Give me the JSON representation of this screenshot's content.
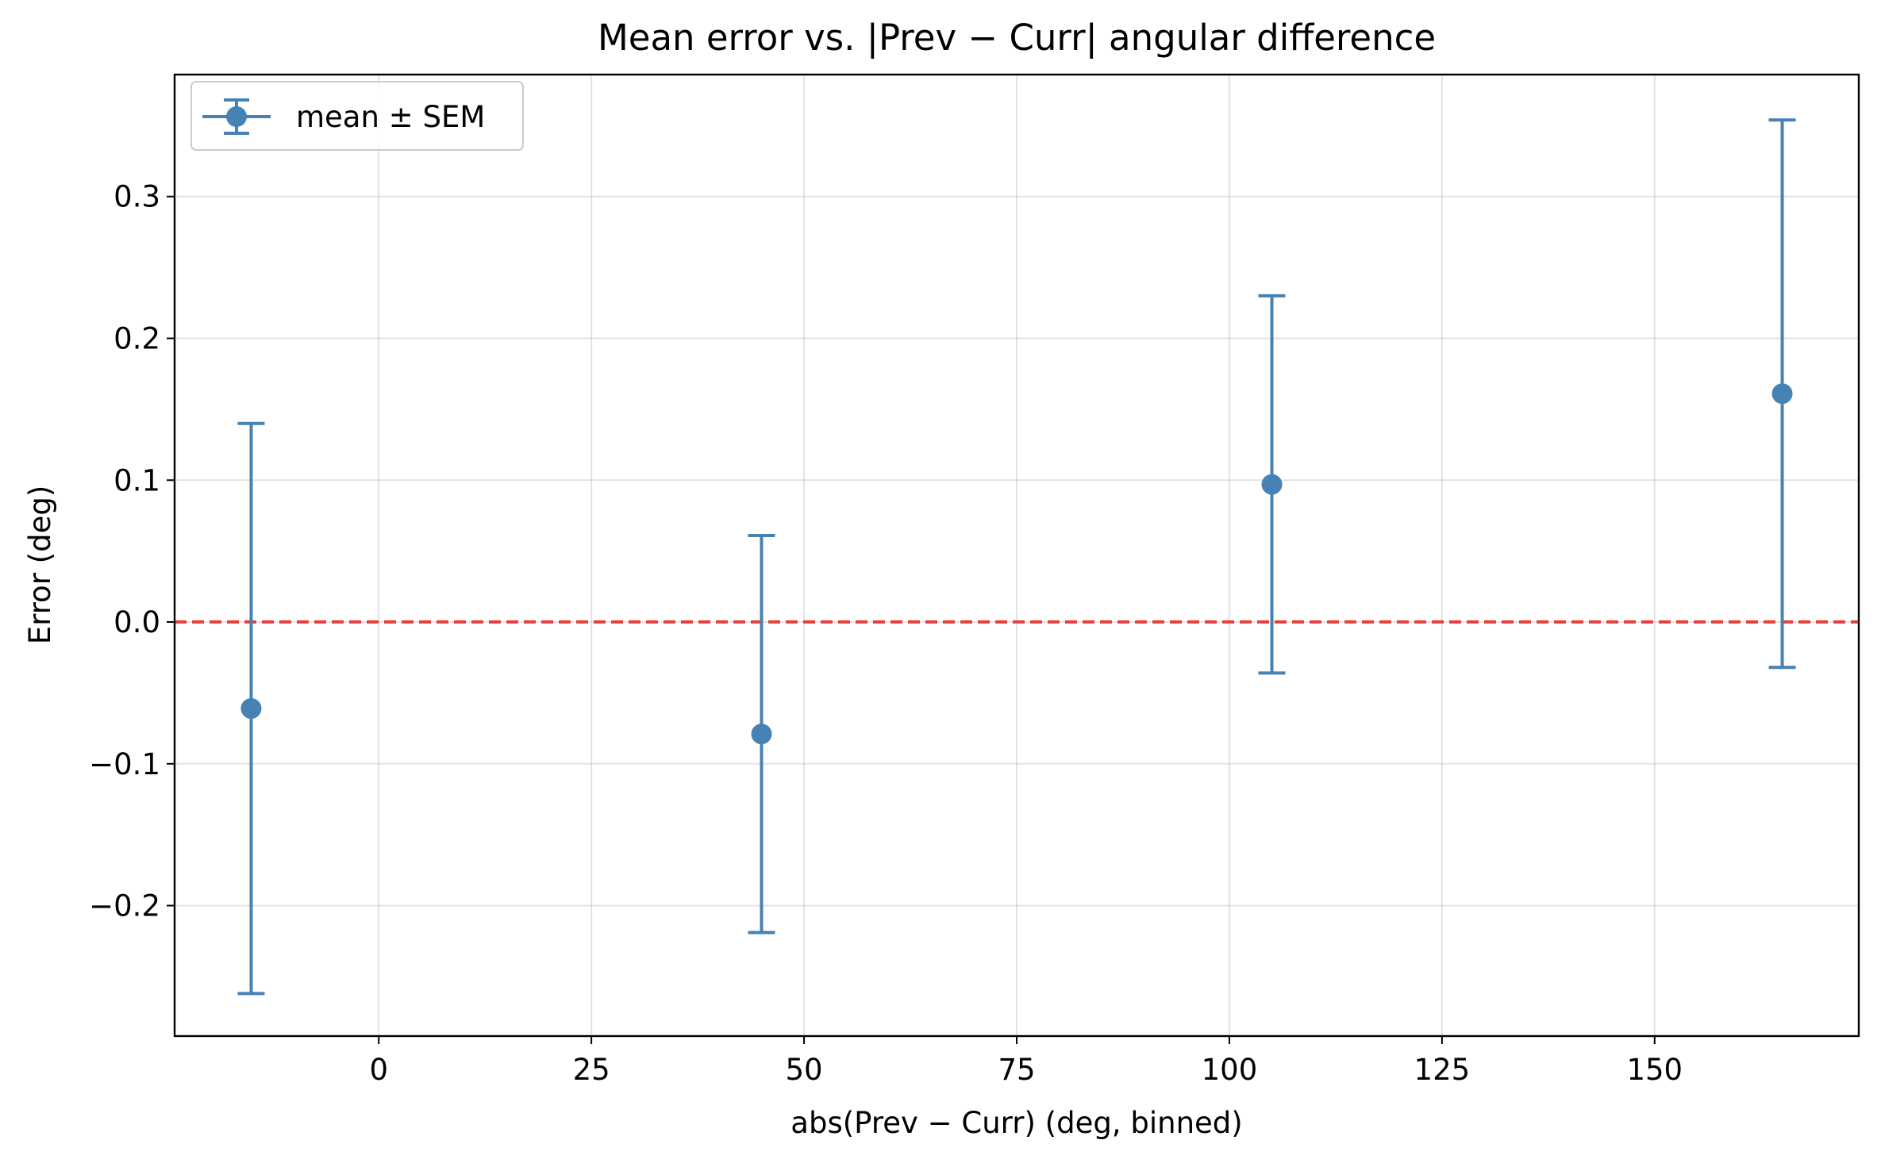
{
  "chart_data": {
    "type": "scatter",
    "title": "Mean error vs. |Prev − Curr| angular difference",
    "xlabel": "abs(Prev − Curr) (deg, binned)",
    "ylabel": "Error (deg)",
    "xlim": [
      -24,
      174
    ],
    "ylim": [
      -0.292,
      0.386
    ],
    "xticks": [
      0,
      25,
      50,
      75,
      100,
      125,
      150
    ],
    "xtick_labels": [
      "0",
      "25",
      "50",
      "75",
      "100",
      "125",
      "150"
    ],
    "yticks": [
      -0.2,
      -0.1,
      0.0,
      0.1,
      0.2,
      0.3
    ],
    "ytick_labels": [
      "−0.2",
      "−0.1",
      "0.0",
      "0.1",
      "0.2",
      "0.3"
    ],
    "grid": true,
    "legend_position": "top-left",
    "reference_line": {
      "y": 0,
      "style": "dashed",
      "color": "#e8413b"
    },
    "series": [
      {
        "name": "mean ± SEM",
        "color": "#4682b4",
        "points": [
          {
            "x": -15,
            "y": -0.061,
            "lower": -0.262,
            "upper": 0.14
          },
          {
            "x": 45,
            "y": -0.079,
            "lower": -0.219,
            "upper": 0.061
          },
          {
            "x": 105,
            "y": 0.097,
            "lower": -0.036,
            "upper": 0.23
          },
          {
            "x": 165,
            "y": 0.161,
            "lower": -0.032,
            "upper": 0.354
          }
        ]
      }
    ]
  }
}
